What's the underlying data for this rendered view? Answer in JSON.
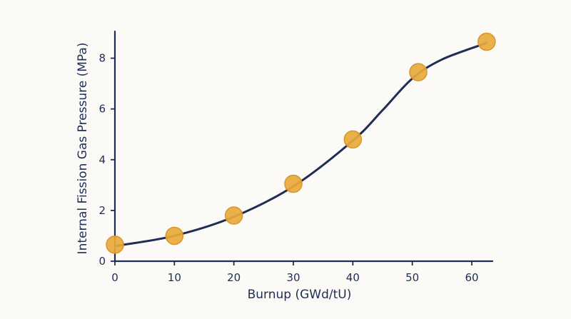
{
  "chart_data": {
    "type": "scatter",
    "title": "",
    "xlabel": "Burnup (GWd/tU)",
    "ylabel": "Internal Fission Gas Pressure (MPa)",
    "xlim": [
      0,
      63
    ],
    "ylim": [
      0,
      9
    ],
    "x_ticks": [
      0,
      10,
      20,
      30,
      40,
      50,
      60
    ],
    "y_ticks": [
      0,
      2,
      4,
      6,
      8
    ],
    "grid": false,
    "legend": "none",
    "series": [
      {
        "kind": "points",
        "x": [
          0,
          10,
          20,
          30,
          40,
          51,
          62.5
        ],
        "y": [
          0.65,
          1.0,
          1.8,
          3.05,
          4.8,
          7.45,
          8.65
        ]
      },
      {
        "kind": "fit-curve",
        "x": [
          0,
          10,
          20,
          30,
          40,
          45,
          50,
          55,
          62.5
        ],
        "y": [
          0.6,
          1.0,
          1.75,
          2.95,
          4.75,
          5.95,
          7.2,
          7.95,
          8.6
        ]
      }
    ],
    "colors": {
      "points": "#e8a93a",
      "curve": "#1f2d55",
      "axis": "#1f2d55",
      "background": "#fbfaf6"
    }
  }
}
